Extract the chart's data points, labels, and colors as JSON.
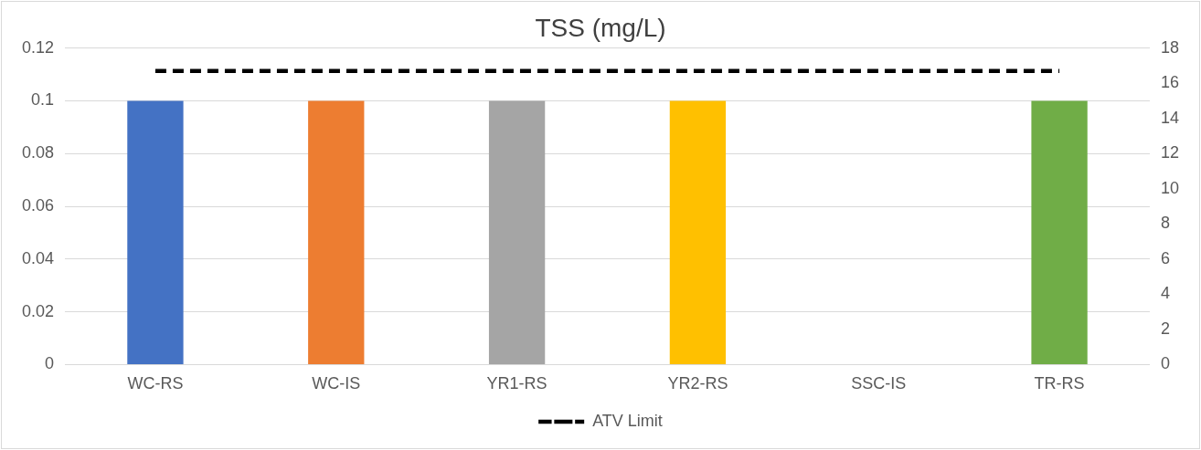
{
  "chart_data": {
    "type": "bar",
    "title": "TSS (mg/L)",
    "categories": [
      "WC-RS",
      "WC-IS",
      "YR1-RS",
      "YR2-RS",
      "SSC-IS",
      "TR-RS"
    ],
    "series": [
      {
        "colors": [
          "#4472c4",
          "#ed7d31",
          "#a5a5a5",
          "#ffc000",
          "#a5a5a5",
          "#70ad47"
        ],
        "values": [
          0.1,
          0.1,
          0.1,
          0.1,
          null,
          0.1
        ]
      },
      {
        "type": "line",
        "name": "ATV Limit",
        "color": "#000000",
        "axis": "y2",
        "line_style": "dashed",
        "marker": "none",
        "values": [
          16.7,
          16.7,
          16.7,
          16.7,
          16.7,
          16.7
        ]
      }
    ],
    "ylim": [
      0,
      0.12
    ],
    "yticks": [
      0,
      0.02,
      0.04,
      0.06,
      0.08,
      0.1,
      0.12
    ],
    "y2lim": [
      0,
      18
    ],
    "y2ticks": [
      0,
      2,
      4,
      6,
      8,
      10,
      12,
      14,
      16,
      18
    ],
    "grid": "y",
    "legend": "bottom"
  }
}
